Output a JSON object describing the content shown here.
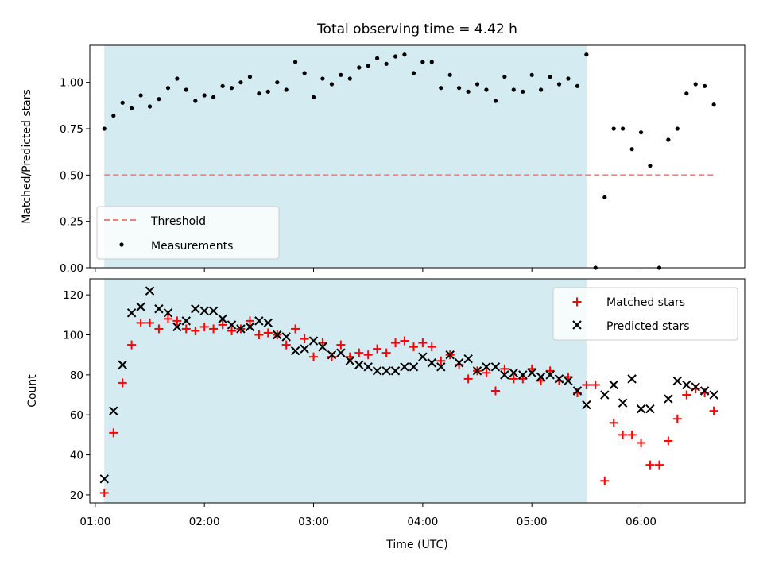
{
  "title": "Total observing time = 4.42 h",
  "colors": {
    "shade": "#d3ebf1",
    "threshold": "#f08080",
    "measurement": "#000000",
    "matched": "#ff0000",
    "predicted": "#000000"
  },
  "chart_data": [
    {
      "type": "scatter",
      "ylabel": "Matched/Predicted stars",
      "xlim": [
        0.95,
        6.95
      ],
      "ylim": [
        0,
        1.2
      ],
      "yticks": [
        0.0,
        0.25,
        0.5,
        0.75,
        1.0
      ],
      "ytick_labels": [
        "0.00",
        "0.25",
        "0.50",
        "0.75",
        "1.00"
      ],
      "shaded_span": [
        1.083,
        5.5
      ],
      "legend_position": "lower-left",
      "grid": false,
      "threshold": {
        "name": "Threshold",
        "value": 0.5,
        "x_range": [
          1.083,
          6.683
        ]
      },
      "series": [
        {
          "name": "Measurements",
          "points": [
            [
              1.083,
              0.75
            ],
            [
              1.167,
              0.82
            ],
            [
              1.25,
              0.89
            ],
            [
              1.333,
              0.86
            ],
            [
              1.417,
              0.93
            ],
            [
              1.5,
              0.87
            ],
            [
              1.583,
              0.91
            ],
            [
              1.667,
              0.97
            ],
            [
              1.75,
              1.02
            ],
            [
              1.833,
              0.96
            ],
            [
              1.917,
              0.9
            ],
            [
              2.0,
              0.93
            ],
            [
              2.083,
              0.92
            ],
            [
              2.167,
              0.98
            ],
            [
              2.25,
              0.97
            ],
            [
              2.333,
              1.0
            ],
            [
              2.417,
              1.03
            ],
            [
              2.5,
              0.94
            ],
            [
              2.583,
              0.95
            ],
            [
              2.667,
              1.0
            ],
            [
              2.75,
              0.96
            ],
            [
              2.833,
              1.11
            ],
            [
              2.917,
              1.05
            ],
            [
              3.0,
              0.92
            ],
            [
              3.083,
              1.02
            ],
            [
              3.167,
              0.99
            ],
            [
              3.25,
              1.04
            ],
            [
              3.333,
              1.02
            ],
            [
              3.417,
              1.08
            ],
            [
              3.5,
              1.09
            ],
            [
              3.583,
              1.13
            ],
            [
              3.667,
              1.1
            ],
            [
              3.75,
              1.14
            ],
            [
              3.833,
              1.15
            ],
            [
              3.917,
              1.05
            ],
            [
              4.0,
              1.11
            ],
            [
              4.083,
              1.11
            ],
            [
              4.167,
              0.97
            ],
            [
              4.25,
              1.04
            ],
            [
              4.333,
              0.97
            ],
            [
              4.417,
              0.95
            ],
            [
              4.5,
              0.99
            ],
            [
              4.583,
              0.96
            ],
            [
              4.667,
              0.9
            ],
            [
              4.75,
              1.03
            ],
            [
              4.833,
              0.96
            ],
            [
              4.917,
              0.95
            ],
            [
              5.0,
              1.04
            ],
            [
              5.083,
              0.96
            ],
            [
              5.167,
              1.03
            ],
            [
              5.25,
              0.99
            ],
            [
              5.333,
              1.02
            ],
            [
              5.417,
              0.98
            ],
            [
              5.5,
              1.15
            ],
            [
              5.583,
              0.0
            ],
            [
              5.667,
              0.38
            ],
            [
              5.75,
              0.75
            ],
            [
              5.833,
              0.75
            ],
            [
              5.917,
              0.64
            ],
            [
              6.0,
              0.73
            ],
            [
              6.083,
              0.55
            ],
            [
              6.167,
              0.0
            ],
            [
              6.25,
              0.69
            ],
            [
              6.333,
              0.75
            ],
            [
              6.417,
              0.94
            ],
            [
              6.5,
              0.99
            ],
            [
              6.583,
              0.98
            ],
            [
              6.667,
              0.88
            ]
          ]
        }
      ]
    },
    {
      "type": "scatter",
      "xlabel": "Time (UTC)",
      "ylabel": "Count",
      "xlim": [
        0.95,
        6.95
      ],
      "ylim": [
        16,
        128
      ],
      "xticks": [
        1,
        2,
        3,
        4,
        5,
        6
      ],
      "xtick_labels": [
        "01:00",
        "02:00",
        "03:00",
        "04:00",
        "05:00",
        "06:00"
      ],
      "yticks": [
        20,
        40,
        60,
        80,
        100,
        120
      ],
      "ytick_labels": [
        "20",
        "40",
        "60",
        "80",
        "100",
        "120"
      ],
      "shaded_span": [
        1.083,
        5.5
      ],
      "legend_position": "upper-right",
      "grid": false,
      "series": [
        {
          "name": "Matched stars",
          "marker": "+",
          "points": [
            [
              1.083,
              21
            ],
            [
              1.167,
              51
            ],
            [
              1.25,
              76
            ],
            [
              1.333,
              95
            ],
            [
              1.417,
              106
            ],
            [
              1.5,
              106
            ],
            [
              1.583,
              103
            ],
            [
              1.667,
              108
            ],
            [
              1.75,
              107
            ],
            [
              1.833,
              103
            ],
            [
              1.917,
              102
            ],
            [
              2.0,
              104
            ],
            [
              2.083,
              103
            ],
            [
              2.167,
              105
            ],
            [
              2.25,
              102
            ],
            [
              2.333,
              103
            ],
            [
              2.417,
              107
            ],
            [
              2.5,
              100
            ],
            [
              2.583,
              101
            ],
            [
              2.667,
              100
            ],
            [
              2.75,
              95
            ],
            [
              2.833,
              103
            ],
            [
              2.917,
              98
            ],
            [
              3.0,
              89
            ],
            [
              3.083,
              96
            ],
            [
              3.167,
              89
            ],
            [
              3.25,
              95
            ],
            [
              3.333,
              89
            ],
            [
              3.417,
              91
            ],
            [
              3.5,
              90
            ],
            [
              3.583,
              93
            ],
            [
              3.667,
              91
            ],
            [
              3.75,
              96
            ],
            [
              3.833,
              97
            ],
            [
              3.917,
              94
            ],
            [
              4.0,
              96
            ],
            [
              4.083,
              94
            ],
            [
              4.167,
              87
            ],
            [
              4.25,
              90
            ],
            [
              4.333,
              85
            ],
            [
              4.417,
              78
            ],
            [
              4.5,
              82
            ],
            [
              4.583,
              81
            ],
            [
              4.667,
              72
            ],
            [
              4.75,
              83
            ],
            [
              4.833,
              78
            ],
            [
              4.917,
              78
            ],
            [
              5.0,
              83
            ],
            [
              5.083,
              77
            ],
            [
              5.167,
              82
            ],
            [
              5.25,
              77
            ],
            [
              5.333,
              79
            ],
            [
              5.417,
              71
            ],
            [
              5.5,
              75
            ],
            [
              5.583,
              75
            ],
            [
              5.667,
              27
            ],
            [
              5.75,
              56
            ],
            [
              5.833,
              50
            ],
            [
              5.917,
              50
            ],
            [
              6.0,
              46
            ],
            [
              6.083,
              35
            ],
            [
              6.167,
              35
            ],
            [
              6.25,
              47
            ],
            [
              6.333,
              58
            ],
            [
              6.417,
              70
            ],
            [
              6.5,
              73
            ],
            [
              6.583,
              71
            ],
            [
              6.667,
              62
            ]
          ]
        },
        {
          "name": "Predicted stars",
          "marker": "x",
          "points": [
            [
              1.083,
              28
            ],
            [
              1.167,
              62
            ],
            [
              1.25,
              85
            ],
            [
              1.333,
              111
            ],
            [
              1.417,
              114
            ],
            [
              1.5,
              122
            ],
            [
              1.583,
              113
            ],
            [
              1.667,
              111
            ],
            [
              1.75,
              104
            ],
            [
              1.833,
              107
            ],
            [
              1.917,
              113
            ],
            [
              2.0,
              112
            ],
            [
              2.083,
              112
            ],
            [
              2.167,
              108
            ],
            [
              2.25,
              105
            ],
            [
              2.333,
              103
            ],
            [
              2.417,
              104
            ],
            [
              2.5,
              107
            ],
            [
              2.583,
              106
            ],
            [
              2.667,
              100
            ],
            [
              2.75,
              99
            ],
            [
              2.833,
              92
            ],
            [
              2.917,
              93
            ],
            [
              3.0,
              97
            ],
            [
              3.083,
              94
            ],
            [
              3.167,
              90
            ],
            [
              3.25,
              91
            ],
            [
              3.333,
              87
            ],
            [
              3.417,
              85
            ],
            [
              3.5,
              84
            ],
            [
              3.583,
              82
            ],
            [
              3.667,
              82
            ],
            [
              3.75,
              82
            ],
            [
              3.833,
              84
            ],
            [
              3.917,
              84
            ],
            [
              4.0,
              89
            ],
            [
              4.083,
              86
            ],
            [
              4.167,
              84
            ],
            [
              4.25,
              90
            ],
            [
              4.333,
              86
            ],
            [
              4.417,
              88
            ],
            [
              4.5,
              82
            ],
            [
              4.583,
              84
            ],
            [
              4.667,
              84
            ],
            [
              4.75,
              80
            ],
            [
              4.833,
              81
            ],
            [
              4.917,
              80
            ],
            [
              5.0,
              81
            ],
            [
              5.083,
              79
            ],
            [
              5.167,
              80
            ],
            [
              5.25,
              78
            ],
            [
              5.333,
              77
            ],
            [
              5.417,
              72
            ],
            [
              5.5,
              65
            ],
            [
              5.667,
              70
            ],
            [
              5.75,
              75
            ],
            [
              5.833,
              66
            ],
            [
              5.917,
              78
            ],
            [
              6.0,
              63
            ],
            [
              6.083,
              63
            ],
            [
              6.25,
              68
            ],
            [
              6.333,
              77
            ],
            [
              6.417,
              75
            ],
            [
              6.5,
              74
            ],
            [
              6.583,
              72
            ],
            [
              6.667,
              70
            ]
          ]
        }
      ]
    }
  ]
}
